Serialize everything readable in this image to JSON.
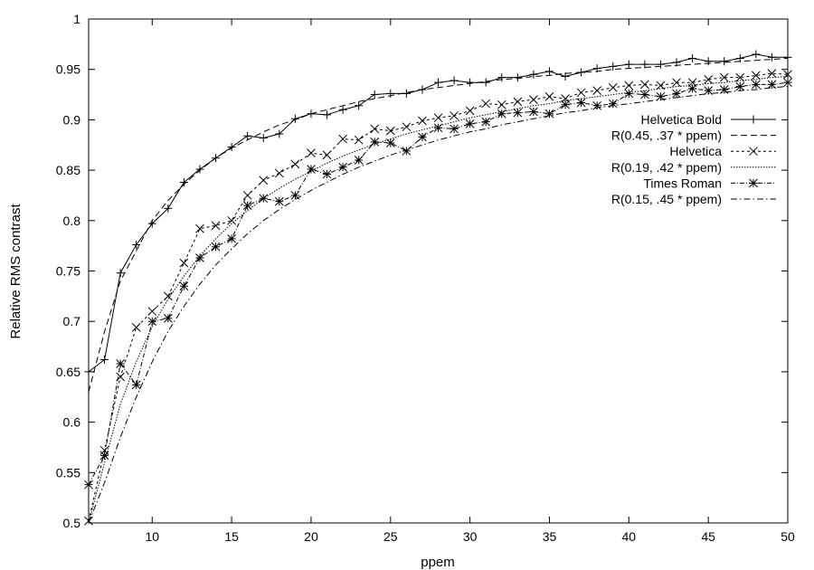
{
  "chart_data": {
    "type": "line",
    "title": "",
    "xlabel": "ppem",
    "ylabel": "Relative RMS contrast",
    "xlim": [
      6,
      50
    ],
    "ylim": [
      0.5,
      1
    ],
    "x_ticks": [
      10,
      15,
      20,
      25,
      30,
      35,
      40,
      45,
      50
    ],
    "y_ticks": [
      0.5,
      0.55,
      0.6,
      0.65,
      0.7,
      0.75,
      0.8,
      0.85,
      0.9,
      0.95,
      1
    ],
    "x_tick_labels": [
      "10",
      "15",
      "20",
      "25",
      "30",
      "35",
      "40",
      "45",
      "50"
    ],
    "y_tick_labels": [
      "0.5",
      "0.55",
      "0.6",
      "0.65",
      "0.7",
      "0.75",
      "0.8",
      "0.85",
      "0.9",
      "0.95",
      "1"
    ],
    "grid": false,
    "legend_position": "right",
    "series": [
      {
        "name": "Helvetica Bold",
        "style": "solid",
        "marker": "plus",
        "x": [
          6,
          7,
          8,
          9,
          10,
          11,
          12,
          13,
          14,
          15,
          16,
          17,
          18,
          19,
          20,
          21,
          22,
          23,
          24,
          25,
          26,
          27,
          28,
          29,
          30,
          31,
          32,
          33,
          34,
          35,
          36,
          37,
          38,
          39,
          40,
          41,
          42,
          43,
          44,
          45,
          46,
          47,
          48,
          49,
          50
        ],
        "values": [
          0.65,
          0.662,
          0.748,
          0.776,
          0.797,
          0.812,
          0.838,
          0.851,
          0.862,
          0.873,
          0.884,
          0.882,
          0.886,
          0.901,
          0.906,
          0.905,
          0.91,
          0.914,
          0.925,
          0.926,
          0.926,
          0.93,
          0.937,
          0.939,
          0.937,
          0.937,
          0.942,
          0.942,
          0.945,
          0.948,
          0.943,
          0.947,
          0.951,
          0.953,
          0.955,
          0.955,
          0.955,
          0.957,
          0.961,
          0.958,
          0.958,
          0.961,
          0.965,
          0.962,
          0.962
        ]
      },
      {
        "name": "R(0.45, .37 * ppem)",
        "style": "dashed",
        "marker": "none",
        "x": [
          6,
          7,
          8,
          9,
          10,
          11,
          12,
          13,
          14,
          15,
          16,
          17,
          18,
          19,
          20,
          21,
          22,
          23,
          24,
          25,
          26,
          27,
          28,
          29,
          30,
          31,
          32,
          33,
          34,
          35,
          36,
          37,
          38,
          39,
          40,
          41,
          42,
          43,
          44,
          45,
          46,
          47,
          48,
          49,
          50
        ],
        "values": [
          0.63,
          0.69,
          0.74,
          0.77,
          0.8,
          0.82,
          0.836,
          0.85,
          0.862,
          0.872,
          0.88,
          0.888,
          0.895,
          0.9,
          0.906,
          0.91,
          0.914,
          0.918,
          0.921,
          0.924,
          0.927,
          0.93,
          0.932,
          0.934,
          0.936,
          0.938,
          0.94,
          0.941,
          0.943,
          0.944,
          0.946,
          0.947,
          0.948,
          0.95,
          0.951,
          0.952,
          0.953,
          0.954,
          0.955,
          0.956,
          0.957,
          0.958,
          0.959,
          0.96,
          0.961
        ]
      },
      {
        "name": "Helvetica",
        "style": "dotted-short",
        "marker": "cross",
        "x": [
          6,
          7,
          8,
          9,
          10,
          11,
          12,
          13,
          14,
          15,
          16,
          17,
          18,
          19,
          20,
          21,
          22,
          23,
          24,
          25,
          26,
          27,
          28,
          29,
          30,
          31,
          32,
          33,
          34,
          35,
          36,
          37,
          38,
          39,
          40,
          41,
          42,
          43,
          44,
          45,
          46,
          47,
          48,
          49,
          50
        ],
        "values": [
          0.502,
          0.572,
          0.645,
          0.694,
          0.71,
          0.725,
          0.758,
          0.792,
          0.795,
          0.8,
          0.825,
          0.84,
          0.847,
          0.856,
          0.867,
          0.865,
          0.881,
          0.88,
          0.891,
          0.889,
          0.893,
          0.899,
          0.902,
          0.904,
          0.909,
          0.916,
          0.915,
          0.918,
          0.92,
          0.923,
          0.921,
          0.927,
          0.929,
          0.932,
          0.934,
          0.935,
          0.934,
          0.937,
          0.937,
          0.94,
          0.942,
          0.942,
          0.944,
          0.946,
          0.945
        ]
      },
      {
        "name": "R(0.19, .42 * ppem)",
        "style": "dotted",
        "marker": "none",
        "x": [
          6,
          7,
          8,
          9,
          10,
          11,
          12,
          13,
          14,
          15,
          16,
          17,
          18,
          19,
          20,
          21,
          22,
          23,
          24,
          25,
          26,
          27,
          28,
          29,
          30,
          31,
          32,
          33,
          34,
          35,
          36,
          37,
          38,
          39,
          40,
          41,
          42,
          43,
          44,
          45,
          46,
          47,
          48,
          49,
          50
        ],
        "values": [
          0.5,
          0.56,
          0.618,
          0.66,
          0.695,
          0.722,
          0.745,
          0.765,
          0.782,
          0.797,
          0.81,
          0.822,
          0.832,
          0.841,
          0.849,
          0.857,
          0.864,
          0.87,
          0.876,
          0.881,
          0.886,
          0.89,
          0.894,
          0.898,
          0.902,
          0.905,
          0.908,
          0.911,
          0.914,
          0.916,
          0.919,
          0.921,
          0.923,
          0.925,
          0.927,
          0.929,
          0.931,
          0.933,
          0.934,
          0.936,
          0.937,
          0.939,
          0.94,
          0.942,
          0.943
        ]
      },
      {
        "name": "Times Roman",
        "style": "dash-dot-short",
        "marker": "star",
        "x": [
          6,
          7,
          8,
          9,
          10,
          11,
          12,
          13,
          14,
          15,
          16,
          17,
          18,
          19,
          20,
          21,
          22,
          23,
          24,
          25,
          26,
          27,
          28,
          29,
          30,
          31,
          32,
          33,
          34,
          35,
          36,
          37,
          38,
          39,
          40,
          41,
          42,
          43,
          44,
          45,
          46,
          47,
          48,
          49,
          50
        ],
        "values": [
          0.538,
          0.567,
          0.658,
          0.637,
          0.7,
          0.703,
          0.735,
          0.763,
          0.774,
          0.782,
          0.815,
          0.822,
          0.819,
          0.825,
          0.851,
          0.846,
          0.853,
          0.86,
          0.878,
          0.877,
          0.869,
          0.883,
          0.892,
          0.891,
          0.896,
          0.898,
          0.906,
          0.907,
          0.908,
          0.906,
          0.915,
          0.917,
          0.914,
          0.916,
          0.926,
          0.925,
          0.923,
          0.926,
          0.931,
          0.929,
          0.93,
          0.933,
          0.935,
          0.935,
          0.937
        ]
      },
      {
        "name": "R(0.15, .45 * ppem)",
        "style": "dash-dot",
        "marker": "none",
        "x": [
          6,
          7,
          8,
          9,
          10,
          11,
          12,
          13,
          14,
          15,
          16,
          17,
          18,
          19,
          20,
          21,
          22,
          23,
          24,
          25,
          26,
          27,
          28,
          29,
          30,
          31,
          32,
          33,
          34,
          35,
          36,
          37,
          38,
          39,
          40,
          41,
          42,
          43,
          44,
          45,
          46,
          47,
          48,
          49,
          50
        ],
        "values": [
          0.5,
          0.54,
          0.585,
          0.625,
          0.66,
          0.69,
          0.715,
          0.737,
          0.756,
          0.772,
          0.787,
          0.8,
          0.811,
          0.821,
          0.83,
          0.838,
          0.846,
          0.853,
          0.859,
          0.865,
          0.87,
          0.875,
          0.88,
          0.884,
          0.888,
          0.891,
          0.895,
          0.898,
          0.901,
          0.904,
          0.907,
          0.909,
          0.912,
          0.914,
          0.916,
          0.918,
          0.92,
          0.922,
          0.924,
          0.926,
          0.927,
          0.929,
          0.93,
          0.932,
          0.933
        ]
      }
    ]
  }
}
